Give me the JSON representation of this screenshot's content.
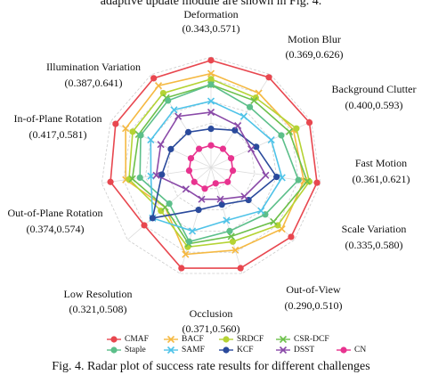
{
  "header_text": "adaptive update module are shown in Fig. 4.",
  "caption": "Fig. 4.   Radar plot of success rate results for different challenges",
  "chart_data": {
    "type": "radar",
    "categories": [
      "Deformation",
      "Motion Blur",
      "Background Clutter",
      "Fast Motion",
      "Scale Variation",
      "Out-of-View",
      "Occlusion",
      "Low Resolution",
      "Out-of-Plane Rotation",
      "In-of-Plane Rotation",
      "Illumination Variation"
    ],
    "category_ranges": [
      "(0.343,0.571)",
      "(0.369,0.626)",
      "(0.400,0.593)",
      "(0.361,0.621)",
      "(0.335,0.580)",
      "(0.290,0.510)",
      "(0.371,0.560)",
      "(0.321,0.508)",
      "(0.374,0.574)",
      "(0.417,0.581)",
      "(0.387,0.641)"
    ],
    "rlim": [
      0,
      1
    ],
    "rticks": [
      0.2,
      0.4,
      0.6,
      0.8,
      1
    ],
    "grid": true,
    "series": [
      {
        "name": "CMAF",
        "color": "#e8474f",
        "marker": "circle",
        "values": [
          0.97,
          0.97,
          0.98,
          0.97,
          0.96,
          0.95,
          0.95,
          0.8,
          0.92,
          0.95,
          0.96
        ]
      },
      {
        "name": "BACF",
        "color": "#f5b942",
        "marker": "x",
        "values": [
          0.85,
          0.8,
          0.82,
          0.85,
          0.85,
          0.78,
          0.82,
          0.55,
          0.78,
          0.85,
          0.88
        ]
      },
      {
        "name": "SRDCF",
        "color": "#b5d334",
        "marker": "circle",
        "values": [
          0.8,
          0.75,
          0.85,
          0.9,
          0.8,
          0.7,
          0.75,
          0.6,
          0.75,
          0.78,
          0.8
        ]
      },
      {
        "name": "CSR-DCF",
        "color": "#6cc04a",
        "marker": "x",
        "values": [
          0.75,
          0.72,
          0.78,
          0.88,
          0.75,
          0.65,
          0.72,
          0.55,
          0.72,
          0.72,
          0.75
        ]
      },
      {
        "name": "Staple",
        "color": "#5cbf8a",
        "marker": "circle",
        "values": [
          0.75,
          0.65,
          0.7,
          0.8,
          0.65,
          0.6,
          0.7,
          0.5,
          0.65,
          0.7,
          0.72
        ]
      },
      {
        "name": "SAMF",
        "color": "#4fc3e8",
        "marker": "x",
        "values": [
          0.6,
          0.55,
          0.6,
          0.65,
          0.6,
          0.5,
          0.6,
          0.7,
          0.55,
          0.6,
          0.62
        ]
      },
      {
        "name": "KCF",
        "color": "#2a4a9c",
        "marker": "circle",
        "values": [
          0.35,
          0.4,
          0.45,
          0.6,
          0.45,
          0.35,
          0.4,
          0.7,
          0.45,
          0.4,
          0.38
        ]
      },
      {
        "name": "DSST",
        "color": "#8a4aa8",
        "marker": "x",
        "values": [
          0.5,
          0.45,
          0.4,
          0.5,
          0.4,
          0.3,
          0.3,
          0.3,
          0.5,
          0.5,
          0.55
        ]
      },
      {
        "name": "CN",
        "color": "#e8338f",
        "marker": "circle",
        "values": [
          0.2,
          0.2,
          0.2,
          0.2,
          0.2,
          0.15,
          0.2,
          0.2,
          0.2,
          0.2,
          0.2
        ]
      }
    ]
  }
}
